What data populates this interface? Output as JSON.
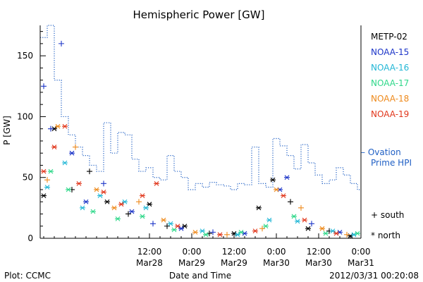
{
  "chart_data": {
    "type": "scatter",
    "title": "Hemispheric Power [GW]",
    "ylabel": "P [GW]",
    "xlabel": "Date and Time",
    "ylim": [
      0,
      175
    ],
    "xlim": [
      "2012-03-27T05:00",
      "2012-03-31T00:00"
    ],
    "yticks": [
      0,
      50,
      100,
      150
    ],
    "xticks": [
      {
        "x": "2012-03-28T12:00",
        "time": "12:00",
        "date": "Mar28"
      },
      {
        "x": "2012-03-29T00:00",
        "time": "0:00",
        "date": "Mar29"
      },
      {
        "x": "2012-03-29T12:00",
        "time": "12:00",
        "date": "Mar29"
      },
      {
        "x": "2012-03-30T00:00",
        "time": "0:00",
        "date": "Mar30"
      },
      {
        "x": "2012-03-30T12:00",
        "time": "12:00",
        "date": "Mar30"
      },
      {
        "x": "2012-03-31T00:00",
        "time": "0:00",
        "date": "Mar31"
      }
    ],
    "grid": false,
    "legend_position": "right",
    "series": [
      {
        "name": "METP-02",
        "color": "#000000",
        "points": [
          {
            "x": "2012-03-27T06:00",
            "y": 35,
            "m": "north"
          },
          {
            "x": "2012-03-27T09:00",
            "y": 90,
            "m": "north"
          },
          {
            "x": "2012-03-27T14:00",
            "y": 40,
            "m": "south"
          },
          {
            "x": "2012-03-27T19:00",
            "y": 55,
            "m": "south"
          },
          {
            "x": "2012-03-28T00:00",
            "y": 30,
            "m": "north"
          },
          {
            "x": "2012-03-28T06:00",
            "y": 20,
            "m": "south"
          },
          {
            "x": "2012-03-28T12:00",
            "y": 28,
            "m": "north"
          },
          {
            "x": "2012-03-28T17:00",
            "y": 10,
            "m": "south"
          },
          {
            "x": "2012-03-28T22:00",
            "y": 10,
            "m": "north"
          },
          {
            "x": "2012-03-29T05:00",
            "y": 4,
            "m": "south"
          },
          {
            "x": "2012-03-29T12:00",
            "y": 4,
            "m": "north"
          },
          {
            "x": "2012-03-29T19:00",
            "y": 25,
            "m": "north"
          },
          {
            "x": "2012-03-29T23:00",
            "y": 48,
            "m": "north"
          },
          {
            "x": "2012-03-30T04:00",
            "y": 30,
            "m": "south"
          },
          {
            "x": "2012-03-30T09:00",
            "y": 8,
            "m": "north"
          },
          {
            "x": "2012-03-30T15:00",
            "y": 6,
            "m": "south"
          },
          {
            "x": "2012-03-30T21:00",
            "y": 2,
            "m": "north"
          }
        ]
      },
      {
        "name": "NOAA-15",
        "color": "#1c35c8",
        "points": [
          {
            "x": "2012-03-27T06:00",
            "y": 125,
            "m": "south"
          },
          {
            "x": "2012-03-27T08:00",
            "y": 90,
            "m": "south"
          },
          {
            "x": "2012-03-27T11:00",
            "y": 160,
            "m": "south"
          },
          {
            "x": "2012-03-27T14:00",
            "y": 70,
            "m": "north"
          },
          {
            "x": "2012-03-27T18:00",
            "y": 30,
            "m": "north"
          },
          {
            "x": "2012-03-27T23:00",
            "y": 45,
            "m": "south"
          },
          {
            "x": "2012-03-28T07:00",
            "y": 22,
            "m": "north"
          },
          {
            "x": "2012-03-28T13:00",
            "y": 12,
            "m": "south"
          },
          {
            "x": "2012-03-28T21:00",
            "y": 8,
            "m": "north"
          },
          {
            "x": "2012-03-29T06:00",
            "y": 5,
            "m": "south"
          },
          {
            "x": "2012-03-29T15:00",
            "y": 4,
            "m": "north"
          },
          {
            "x": "2012-03-30T01:00",
            "y": 40,
            "m": "north"
          },
          {
            "x": "2012-03-30T03:00",
            "y": 50,
            "m": "north"
          },
          {
            "x": "2012-03-30T10:00",
            "y": 12,
            "m": "south"
          },
          {
            "x": "2012-03-30T18:00",
            "y": 5,
            "m": "north"
          }
        ]
      },
      {
        "name": "NOAA-16",
        "color": "#22b7d6",
        "points": [
          {
            "x": "2012-03-27T07:00",
            "y": 42,
            "m": "north"
          },
          {
            "x": "2012-03-27T12:00",
            "y": 62,
            "m": "north"
          },
          {
            "x": "2012-03-27T17:00",
            "y": 25,
            "m": "north"
          },
          {
            "x": "2012-03-27T22:00",
            "y": 35,
            "m": "north"
          },
          {
            "x": "2012-03-28T05:00",
            "y": 30,
            "m": "north"
          },
          {
            "x": "2012-03-28T11:00",
            "y": 25,
            "m": "north"
          },
          {
            "x": "2012-03-28T18:00",
            "y": 12,
            "m": "north"
          },
          {
            "x": "2012-03-29T03:00",
            "y": 6,
            "m": "north"
          },
          {
            "x": "2012-03-29T13:00",
            "y": 3,
            "m": "north"
          },
          {
            "x": "2012-03-29T22:00",
            "y": 15,
            "m": "north"
          },
          {
            "x": "2012-03-30T06:00",
            "y": 14,
            "m": "north"
          },
          {
            "x": "2012-03-30T16:00",
            "y": 6,
            "m": "north"
          },
          {
            "x": "2012-03-30T22:00",
            "y": 3,
            "m": "north"
          }
        ]
      },
      {
        "name": "NOAA-17",
        "color": "#2fd88a",
        "points": [
          {
            "x": "2012-03-27T08:00",
            "y": 55,
            "m": "north"
          },
          {
            "x": "2012-03-27T13:00",
            "y": 40,
            "m": "north"
          },
          {
            "x": "2012-03-27T20:00",
            "y": 22,
            "m": "north"
          },
          {
            "x": "2012-03-28T03:00",
            "y": 16,
            "m": "north"
          },
          {
            "x": "2012-03-28T10:00",
            "y": 18,
            "m": "north"
          },
          {
            "x": "2012-03-28T19:00",
            "y": 7,
            "m": "north"
          },
          {
            "x": "2012-03-29T04:00",
            "y": 3,
            "m": "north"
          },
          {
            "x": "2012-03-29T14:00",
            "y": 5,
            "m": "north"
          },
          {
            "x": "2012-03-29T21:00",
            "y": 10,
            "m": "north"
          },
          {
            "x": "2012-03-30T05:00",
            "y": 18,
            "m": "north"
          },
          {
            "x": "2012-03-30T14:00",
            "y": 4,
            "m": "north"
          },
          {
            "x": "2012-03-30T23:00",
            "y": 4,
            "m": "north"
          }
        ]
      },
      {
        "name": "NOAA-18",
        "color": "#ee8a1c",
        "points": [
          {
            "x": "2012-03-27T07:00",
            "y": 48,
            "m": "south"
          },
          {
            "x": "2012-03-27T10:00",
            "y": 92,
            "m": "north"
          },
          {
            "x": "2012-03-27T15:00",
            "y": 75,
            "m": "south"
          },
          {
            "x": "2012-03-27T21:00",
            "y": 40,
            "m": "north"
          },
          {
            "x": "2012-03-28T02:00",
            "y": 25,
            "m": "north"
          },
          {
            "x": "2012-03-28T09:00",
            "y": 30,
            "m": "south"
          },
          {
            "x": "2012-03-28T16:00",
            "y": 15,
            "m": "north"
          },
          {
            "x": "2012-03-29T01:00",
            "y": 5,
            "m": "north"
          },
          {
            "x": "2012-03-29T10:00",
            "y": 3,
            "m": "south"
          },
          {
            "x": "2012-03-29T20:00",
            "y": 8,
            "m": "south"
          },
          {
            "x": "2012-03-30T00:00",
            "y": 40,
            "m": "north"
          },
          {
            "x": "2012-03-30T07:00",
            "y": 25,
            "m": "south"
          },
          {
            "x": "2012-03-30T13:00",
            "y": 8,
            "m": "north"
          },
          {
            "x": "2012-03-30T20:00",
            "y": 3,
            "m": "south"
          }
        ]
      },
      {
        "name": "NOAA-19",
        "color": "#e1361b",
        "points": [
          {
            "x": "2012-03-27T06:00",
            "y": 55,
            "m": "north"
          },
          {
            "x": "2012-03-27T09:00",
            "y": 75,
            "m": "north"
          },
          {
            "x": "2012-03-27T12:00",
            "y": 92,
            "m": "north"
          },
          {
            "x": "2012-03-27T16:00",
            "y": 45,
            "m": "north"
          },
          {
            "x": "2012-03-27T23:00",
            "y": 38,
            "m": "north"
          },
          {
            "x": "2012-03-28T04:00",
            "y": 28,
            "m": "north"
          },
          {
            "x": "2012-03-28T10:00",
            "y": 35,
            "m": "north"
          },
          {
            "x": "2012-03-28T14:00",
            "y": 45,
            "m": "north"
          },
          {
            "x": "2012-03-28T20:00",
            "y": 10,
            "m": "north"
          },
          {
            "x": "2012-03-29T08:00",
            "y": 3,
            "m": "north"
          },
          {
            "x": "2012-03-29T18:00",
            "y": 6,
            "m": "north"
          },
          {
            "x": "2012-03-30T02:00",
            "y": 35,
            "m": "north"
          },
          {
            "x": "2012-03-30T08:00",
            "y": 15,
            "m": "north"
          },
          {
            "x": "2012-03-30T17:00",
            "y": 4,
            "m": "north"
          }
        ]
      }
    ],
    "line_series": {
      "name": "Ovation Prime HPI",
      "legend_text": [
        "– Ovation",
        "Prime HPI"
      ],
      "color": "#1f5fc4",
      "style": "dotted-step",
      "points": [
        {
          "x": "2012-03-27T05:00",
          "y": 165
        },
        {
          "x": "2012-03-27T07:00",
          "y": 175
        },
        {
          "x": "2012-03-27T09:00",
          "y": 130
        },
        {
          "x": "2012-03-27T11:00",
          "y": 100
        },
        {
          "x": "2012-03-27T13:00",
          "y": 85
        },
        {
          "x": "2012-03-27T15:00",
          "y": 75
        },
        {
          "x": "2012-03-27T17:00",
          "y": 68
        },
        {
          "x": "2012-03-27T19:00",
          "y": 60
        },
        {
          "x": "2012-03-27T21:00",
          "y": 55
        },
        {
          "x": "2012-03-27T23:00",
          "y": 95
        },
        {
          "x": "2012-03-28T01:00",
          "y": 70
        },
        {
          "x": "2012-03-28T03:00",
          "y": 87
        },
        {
          "x": "2012-03-28T05:00",
          "y": 85
        },
        {
          "x": "2012-03-28T07:00",
          "y": 65
        },
        {
          "x": "2012-03-28T09:00",
          "y": 55
        },
        {
          "x": "2012-03-28T11:00",
          "y": 58
        },
        {
          "x": "2012-03-28T13:00",
          "y": 50
        },
        {
          "x": "2012-03-28T15:00",
          "y": 48
        },
        {
          "x": "2012-03-28T17:00",
          "y": 68
        },
        {
          "x": "2012-03-28T19:00",
          "y": 55
        },
        {
          "x": "2012-03-28T21:00",
          "y": 50
        },
        {
          "x": "2012-03-28T23:00",
          "y": 40
        },
        {
          "x": "2012-03-29T01:00",
          "y": 45
        },
        {
          "x": "2012-03-29T03:00",
          "y": 42
        },
        {
          "x": "2012-03-29T05:00",
          "y": 46
        },
        {
          "x": "2012-03-29T07:00",
          "y": 44
        },
        {
          "x": "2012-03-29T09:00",
          "y": 43
        },
        {
          "x": "2012-03-29T11:00",
          "y": 40
        },
        {
          "x": "2012-03-29T13:00",
          "y": 45
        },
        {
          "x": "2012-03-29T15:00",
          "y": 44
        },
        {
          "x": "2012-03-29T17:00",
          "y": 75
        },
        {
          "x": "2012-03-29T19:00",
          "y": 45
        },
        {
          "x": "2012-03-29T21:00",
          "y": 42
        },
        {
          "x": "2012-03-29T23:00",
          "y": 82
        },
        {
          "x": "2012-03-30T01:00",
          "y": 76
        },
        {
          "x": "2012-03-30T03:00",
          "y": 68
        },
        {
          "x": "2012-03-30T05:00",
          "y": 57
        },
        {
          "x": "2012-03-30T07:00",
          "y": 77
        },
        {
          "x": "2012-03-30T09:00",
          "y": 62
        },
        {
          "x": "2012-03-30T11:00",
          "y": 52
        },
        {
          "x": "2012-03-30T13:00",
          "y": 45
        },
        {
          "x": "2012-03-30T15:00",
          "y": 48
        },
        {
          "x": "2012-03-30T17:00",
          "y": 58
        },
        {
          "x": "2012-03-30T19:00",
          "y": 52
        },
        {
          "x": "2012-03-30T21:00",
          "y": 45
        },
        {
          "x": "2012-03-30T23:00",
          "y": 40
        }
      ]
    },
    "markers_legend": [
      {
        "symbol": "+",
        "label": "south"
      },
      {
        "symbol": "*",
        "label": "north"
      }
    ]
  },
  "footer": {
    "left": "Plot: CCMC",
    "center": "Date and Time",
    "right": "2012/03/31 00:20:08"
  }
}
